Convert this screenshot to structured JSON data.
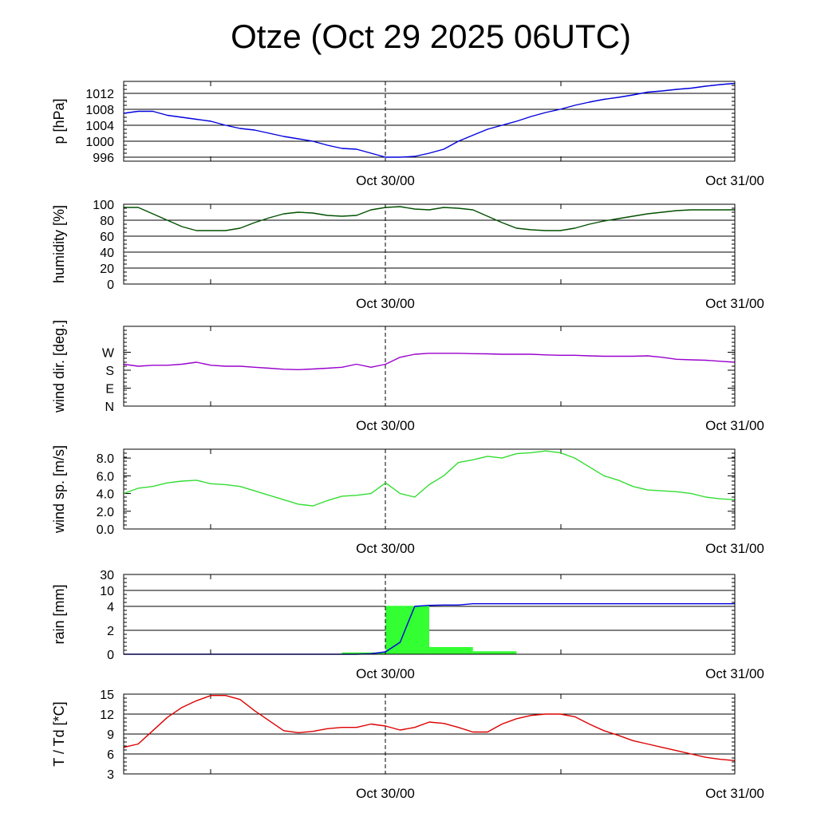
{
  "title": "Otze (Oct 29 2025 06UTC)",
  "chart_data": [
    {
      "type": "line",
      "ylabel": "p [hPa]",
      "ylim": [
        995,
        1015
      ],
      "yticks": [
        {
          "v": 996,
          "label": "996"
        },
        {
          "v": 1000,
          "label": "1000"
        },
        {
          "v": 1004,
          "label": "1004"
        },
        {
          "v": 1008,
          "label": "1008"
        },
        {
          "v": 1012,
          "label": "1012"
        }
      ],
      "xtick_labels": [
        "Oct 30/00",
        "Oct 31/00"
      ],
      "grid": true,
      "series": [
        {
          "color": "#0000dd",
          "x": [
            0,
            1,
            2,
            3,
            4,
            5,
            6,
            7,
            8,
            9,
            10,
            11,
            12,
            13,
            14,
            15,
            16,
            17,
            18,
            19,
            20,
            21,
            22,
            23,
            24,
            25,
            26,
            27,
            28,
            29,
            30,
            31,
            32,
            33,
            34,
            35,
            36,
            37,
            38,
            39,
            40,
            41,
            42
          ],
          "y": [
            1007,
            1007.5,
            1007.5,
            1006.5,
            1006,
            1005.5,
            1005,
            1004,
            1003.2,
            1002.8,
            1002,
            1001.2,
            1000.6,
            1000,
            999,
            998.2,
            998,
            997,
            996,
            996,
            996.2,
            997,
            998,
            1000,
            1001.5,
            1003,
            1004,
            1005,
            1006.2,
            1007.2,
            1008,
            1009,
            1009.8,
            1010.5,
            1011,
            1011.6,
            1012.3,
            1012.6,
            1013,
            1013.3,
            1013.8,
            1014.2,
            1014.5
          ]
        }
      ]
    },
    {
      "type": "line",
      "ylabel": "humidity [%]",
      "ylim": [
        0,
        100
      ],
      "yticks": [
        {
          "v": 0,
          "label": "0"
        },
        {
          "v": 20,
          "label": "20"
        },
        {
          "v": 40,
          "label": "40"
        },
        {
          "v": 60,
          "label": "60"
        },
        {
          "v": 80,
          "label": "80"
        },
        {
          "v": 100,
          "label": "100"
        }
      ],
      "xtick_labels": [
        "Oct 30/00",
        "Oct 31/00"
      ],
      "grid": true,
      "series": [
        {
          "color": "#005000",
          "x": [
            0,
            1,
            2,
            3,
            4,
            5,
            6,
            7,
            8,
            9,
            10,
            11,
            12,
            13,
            14,
            15,
            16,
            17,
            18,
            19,
            20,
            21,
            22,
            23,
            24,
            25,
            26,
            27,
            28,
            29,
            30,
            31,
            32,
            33,
            34,
            35,
            36,
            37,
            38,
            39,
            40,
            41,
            42
          ],
          "y": [
            96,
            96,
            88,
            80,
            72,
            67,
            67,
            67,
            70,
            77,
            83,
            88,
            90,
            89,
            86,
            85,
            86,
            93,
            96,
            97,
            94,
            93,
            96,
            95,
            93,
            85,
            77,
            70,
            68,
            67,
            67,
            70,
            75,
            79,
            82,
            85,
            88,
            90,
            92,
            93,
            93,
            93,
            93
          ]
        }
      ]
    },
    {
      "type": "line",
      "ylabel": "wind dir. [deg.]",
      "ylim": [
        0,
        400
      ],
      "yticks": [
        {
          "v": 0,
          "label": "N"
        },
        {
          "v": 90,
          "label": "E"
        },
        {
          "v": 180,
          "label": "S"
        },
        {
          "v": 270,
          "label": "W"
        }
      ],
      "xtick_labels": [
        "Oct 30/00",
        "Oct 31/00"
      ],
      "grid": false,
      "series": [
        {
          "color": "#9900cc",
          "x": [
            0,
            1,
            2,
            3,
            4,
            5,
            6,
            7,
            8,
            9,
            10,
            11,
            12,
            13,
            14,
            15,
            16,
            17,
            18,
            19,
            20,
            21,
            22,
            23,
            24,
            25,
            26,
            27,
            28,
            29,
            30,
            31,
            32,
            33,
            34,
            35,
            36,
            37,
            38,
            39,
            40,
            41,
            42
          ],
          "y": [
            210,
            200,
            205,
            205,
            210,
            220,
            205,
            200,
            200,
            195,
            190,
            185,
            183,
            186,
            190,
            195,
            210,
            195,
            210,
            245,
            260,
            265,
            265,
            265,
            263,
            262,
            260,
            260,
            260,
            257,
            255,
            255,
            252,
            250,
            250,
            250,
            252,
            245,
            235,
            232,
            230,
            225,
            220
          ]
        }
      ]
    },
    {
      "type": "line",
      "ylabel": "wind sp. [m/s]",
      "ylim": [
        0,
        9
      ],
      "yticks": [
        {
          "v": 0,
          "label": "0.0"
        },
        {
          "v": 2,
          "label": "2.0"
        },
        {
          "v": 4,
          "label": "4.0"
        },
        {
          "v": 6,
          "label": "6.0"
        },
        {
          "v": 8,
          "label": "8.0"
        }
      ],
      "xtick_labels": [
        "Oct 30/00",
        "Oct 31/00"
      ],
      "grid": false,
      "series": [
        {
          "color": "#33dd33",
          "x": [
            0,
            1,
            2,
            3,
            4,
            5,
            6,
            7,
            8,
            9,
            10,
            11,
            12,
            13,
            14,
            15,
            16,
            17,
            18,
            19,
            20,
            21,
            22,
            23,
            24,
            25,
            26,
            27,
            28,
            29,
            30,
            31,
            32,
            33,
            34,
            35,
            36,
            37,
            38,
            39,
            40,
            41,
            42
          ],
          "y": [
            4.0,
            4.6,
            4.8,
            5.2,
            5.4,
            5.5,
            5.1,
            5.0,
            4.8,
            4.3,
            3.8,
            3.3,
            2.8,
            2.6,
            3.2,
            3.7,
            3.8,
            4.0,
            5.2,
            4.0,
            3.6,
            5.0,
            6.0,
            7.5,
            7.8,
            8.2,
            8.0,
            8.5,
            8.6,
            8.8,
            8.6,
            8.0,
            7.0,
            6.0,
            5.5,
            4.8,
            4.4,
            4.3,
            4.2,
            4.0,
            3.6,
            3.4,
            3.3
          ]
        }
      ]
    },
    {
      "type": "bar+line",
      "ylabel": "rain [mm]",
      "ylim": [
        0,
        30
      ],
      "yticks": [
        {
          "v": 0,
          "label": "0"
        },
        {
          "v": 2,
          "label": "2"
        },
        {
          "v": 4,
          "label": "4"
        },
        {
          "v": 10,
          "label": "10"
        },
        {
          "v": 30,
          "label": "30"
        }
      ],
      "xtick_labels": [
        "Oct 30/00",
        "Oct 31/00"
      ],
      "grid": true,
      "bars": {
        "color": "#33ff33",
        "edges": [
          0,
          3,
          6,
          9,
          12,
          15,
          18,
          21,
          24,
          27,
          30,
          33,
          36,
          39,
          42
        ],
        "values": [
          0,
          0,
          0,
          0,
          0,
          0.15,
          4.2,
          0.6,
          0.25,
          0,
          0,
          0,
          0,
          0
        ]
      },
      "series": [
        {
          "color": "#0000dd",
          "x": [
            0,
            16,
            17,
            18,
            19,
            19.5,
            20,
            21,
            22,
            23,
            24,
            42
          ],
          "y": [
            0,
            0,
            0.05,
            0.2,
            1,
            2.5,
            4,
            4.4,
            4.5,
            4.5,
            5.0,
            5.0
          ]
        }
      ]
    },
    {
      "type": "line",
      "ylabel": "T / Td [*C]",
      "ylim": [
        3,
        15
      ],
      "yticks": [
        {
          "v": 3,
          "label": "3"
        },
        {
          "v": 6,
          "label": "6"
        },
        {
          "v": 9,
          "label": "9"
        },
        {
          "v": 12,
          "label": "12"
        },
        {
          "v": 15,
          "label": "15"
        }
      ],
      "xtick_labels": [
        "Oct 30/00",
        "Oct 31/00"
      ],
      "grid": true,
      "series": [
        {
          "color": "#dd0000",
          "x": [
            0,
            1,
            2,
            3,
            4,
            5,
            6,
            7,
            8,
            9,
            10,
            11,
            12,
            13,
            14,
            15,
            16,
            17,
            18,
            19,
            20,
            21,
            22,
            23,
            24,
            25,
            26,
            27,
            28,
            29,
            30,
            31,
            32,
            33,
            34,
            35,
            36,
            37,
            38,
            39,
            40,
            41,
            42
          ],
          "y": [
            7.0,
            7.5,
            9.5,
            11.5,
            13,
            14,
            14.8,
            14.8,
            14.2,
            12.5,
            11,
            9.5,
            9.2,
            9.4,
            9.8,
            10.0,
            10.0,
            10.5,
            10.2,
            9.6,
            10.0,
            10.8,
            10.6,
            10.0,
            9.3,
            9.3,
            10.5,
            11.3,
            11.8,
            12.0,
            12.0,
            11.6,
            10.5,
            9.5,
            8.8,
            8.0,
            7.5,
            7.0,
            6.5,
            6.0,
            5.5,
            5.2,
            5.0
          ]
        }
      ]
    }
  ]
}
